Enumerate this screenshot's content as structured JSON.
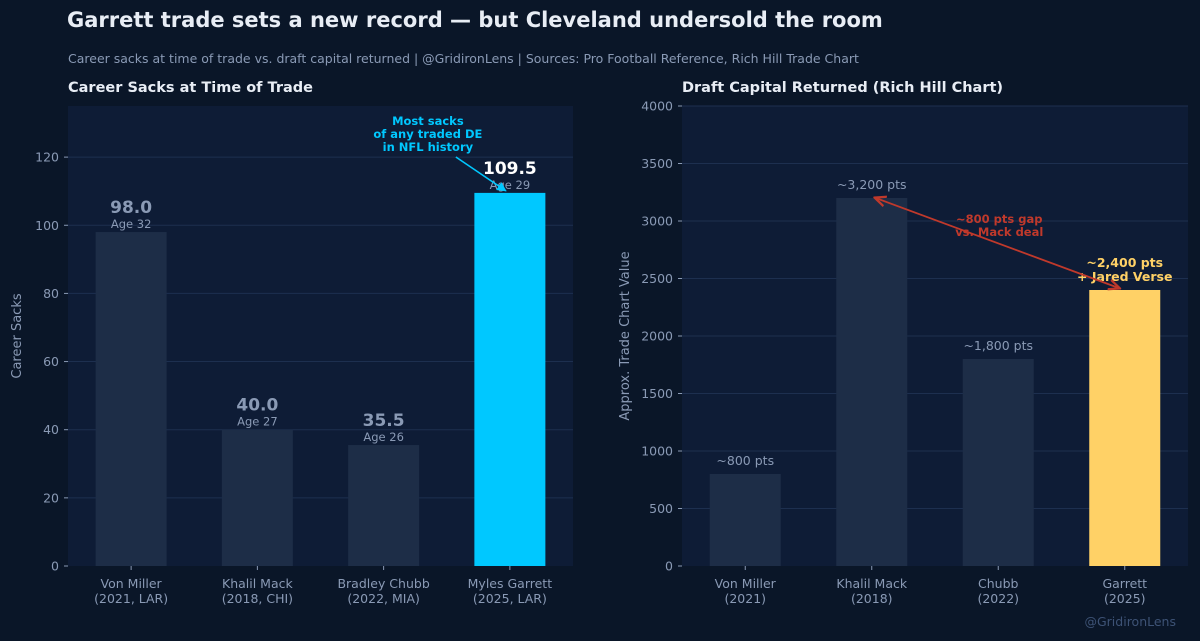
{
  "header": {
    "title": "Garrett trade sets a new record — but Cleveland undersold the room",
    "subtitle": "Career sacks at time of trade vs. draft capital returned  |  @GridironLens  |  Sources: Pro Football Reference, Rich Hill Trade Chart"
  },
  "watermark": "@GridironLens",
  "colors": {
    "background": "#0a1628",
    "plot_bg": "#0e1c36",
    "bar_default": "#1d2d47",
    "highlight_cyan": "#00c8ff",
    "highlight_gold": "#ffd166",
    "gap_red": "#c0392b",
    "muted_text": "#8a9ab5"
  },
  "chart_data": [
    {
      "type": "bar",
      "title": "Career Sacks at Time of Trade",
      "ylabel": "Career Sacks",
      "ylim": [
        0,
        135
      ],
      "yticks": [
        0,
        20,
        40,
        60,
        80,
        100,
        120
      ],
      "grid": true,
      "categories": [
        [
          "Von Miller",
          "(2021, LAR)"
        ],
        [
          "Khalil Mack",
          "(2018, CHI)"
        ],
        [
          "Bradley Chubb",
          "(2022, MIA)"
        ],
        [
          "Myles Garrett",
          "(2025, LAR)"
        ]
      ],
      "values": [
        98.0,
        40.0,
        35.5,
        109.5
      ],
      "value_labels": [
        "98.0",
        "40.0",
        "35.5",
        "109.5"
      ],
      "sub_labels": [
        "Age 32",
        "Age 27",
        "Age 26",
        "Age 29"
      ],
      "highlight_index": 3,
      "annotation": {
        "lines": [
          "Most sacks",
          "of any traded DE",
          "in NFL history"
        ],
        "points_to": "Myles Garrett"
      }
    },
    {
      "type": "bar",
      "title": "Draft Capital Returned (Rich Hill Chart)",
      "ylabel": "Approx. Trade Chart Value",
      "ylim": [
        0,
        4000
      ],
      "yticks": [
        0,
        500,
        1000,
        1500,
        2000,
        2500,
        3000,
        3500,
        4000
      ],
      "grid": true,
      "categories": [
        [
          "Von Miller",
          "(2021)"
        ],
        [
          "Khalil Mack",
          "(2018)"
        ],
        [
          "Chubb",
          "(2022)"
        ],
        [
          "Garrett",
          "(2025)"
        ]
      ],
      "values": [
        800,
        3200,
        1800,
        2400
      ],
      "value_labels": [
        "~800 pts",
        "~3,200 pts",
        "~1,800 pts",
        ""
      ],
      "highlight_index": 3,
      "highlight_label": [
        "~2,400 pts",
        "+ Jared Verse"
      ],
      "gap_annotation": {
        "lines": [
          "~800 pts gap",
          "vs. Mack deal"
        ],
        "from": "Khalil Mack",
        "to": "Garrett"
      }
    }
  ]
}
